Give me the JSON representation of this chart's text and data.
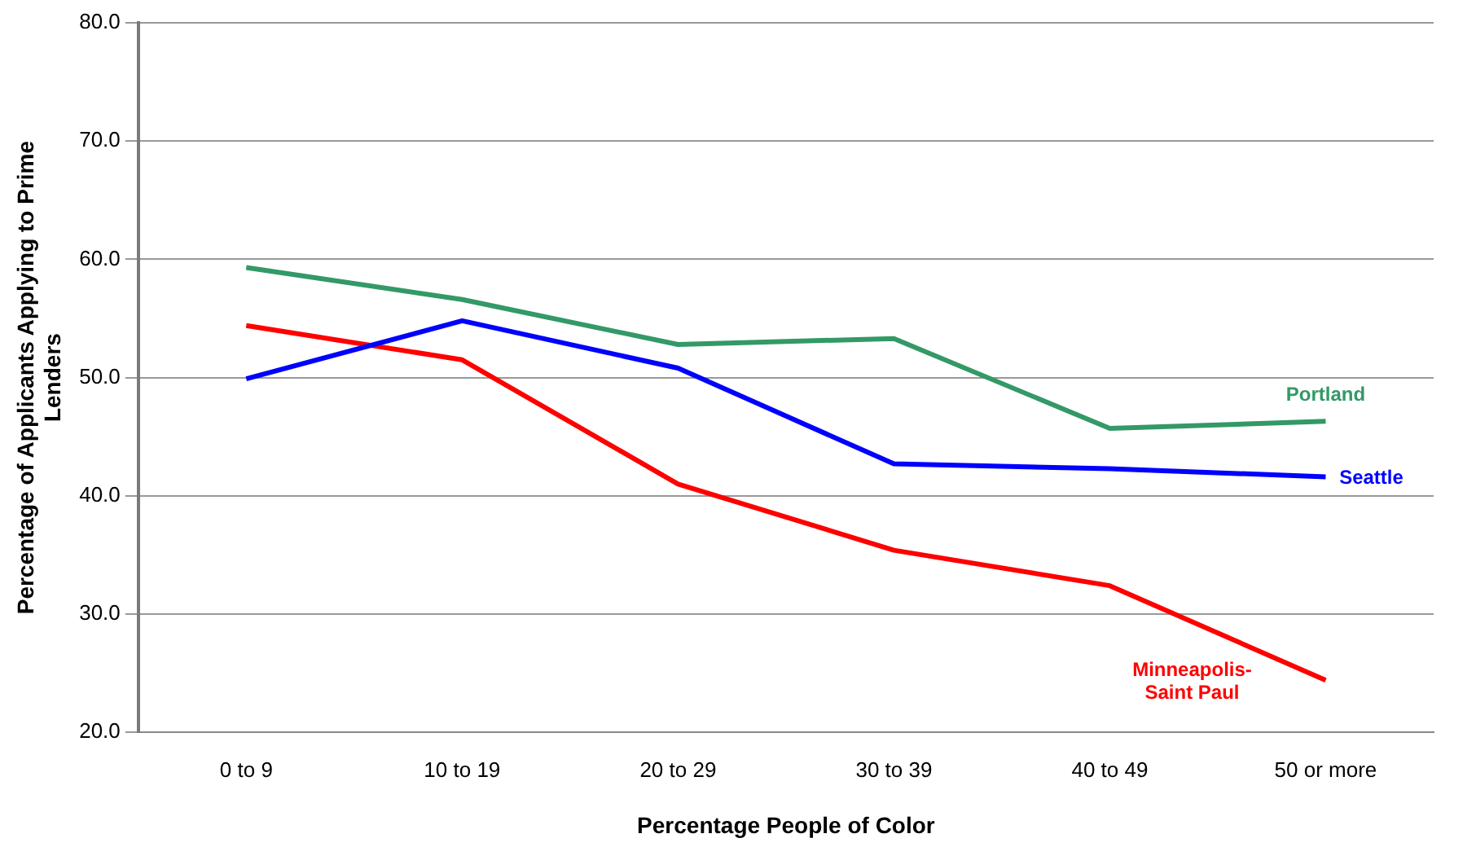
{
  "chart_data": {
    "type": "line",
    "xlabel": "Percentage People of Color",
    "ylabel": "Percentage of Applicants Applying to Prime Lenders",
    "categories": [
      "0 to 9",
      "10 to 19",
      "20 to 29",
      "30 to 39",
      "40 to 49",
      "50 or more"
    ],
    "series": [
      {
        "name": "Portland",
        "color": "#339966",
        "values": [
          59.3,
          56.6,
          52.8,
          53.3,
          45.7,
          46.3
        ]
      },
      {
        "name": "Seattle",
        "color": "#0000ff",
        "values": [
          49.9,
          54.8,
          50.8,
          42.7,
          42.3,
          41.6
        ]
      },
      {
        "name": "Minneapolis-Saint Paul",
        "color": "#ff0000",
        "values": [
          54.4,
          51.5,
          41.0,
          35.4,
          32.4,
          24.4
        ]
      }
    ],
    "ylim": [
      20,
      80
    ],
    "yticks": [
      {
        "value": 20,
        "label": "20.0"
      },
      {
        "value": 30,
        "label": "30.0"
      },
      {
        "value": 40,
        "label": "40.0"
      },
      {
        "value": 50,
        "label": "50.0"
      },
      {
        "value": 60,
        "label": "60.0"
      },
      {
        "value": 70,
        "label": "70.0"
      },
      {
        "value": 80,
        "label": "80.0"
      }
    ],
    "grid": "y",
    "legend": false,
    "marker": "none",
    "line_style": "solid"
  }
}
